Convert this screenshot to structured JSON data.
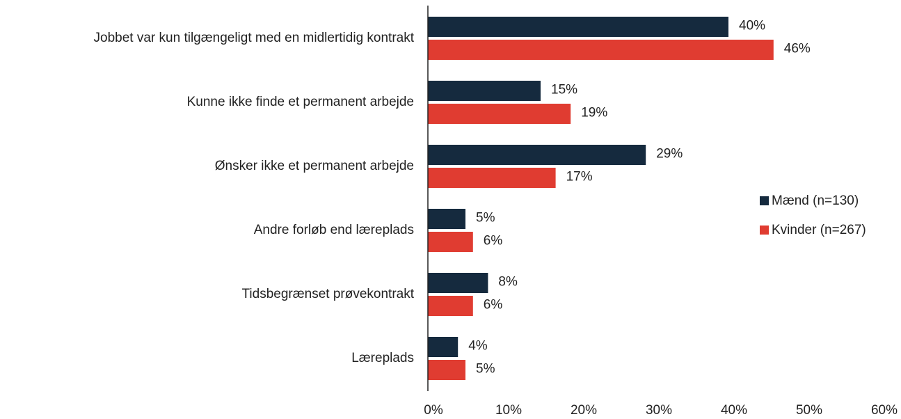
{
  "chart_data": {
    "type": "barh",
    "categories": [
      "Jobbet var kun tilgængeligt med en midlertidig kontrakt",
      "Kunne ikke finde et permanent arbejde",
      "Ønsker ikke et permanent arbejde",
      "Andre forløb end læreplads",
      "Tidsbegrænset prøvekontrakt",
      "Læreplads"
    ],
    "series": [
      {
        "name": "Mænd (n=130)",
        "color": "#152a3e",
        "values": [
          40,
          15,
          29,
          5,
          8,
          4
        ],
        "value_labels": [
          "40%",
          "15%",
          "29%",
          "5%",
          "8%",
          "4%"
        ]
      },
      {
        "name": "Kvinder (n=267)",
        "color": "#e03c31",
        "values": [
          46,
          19,
          17,
          6,
          6,
          5
        ],
        "value_labels": [
          "46%",
          "19%",
          "17%",
          "6%",
          "6%",
          "5%"
        ]
      }
    ],
    "xlim": [
      0,
      60
    ],
    "xticks": [
      {
        "value": 0,
        "label": "0%"
      },
      {
        "value": 10,
        "label": "10%"
      },
      {
        "value": 20,
        "label": "20%"
      },
      {
        "value": 30,
        "label": "30%"
      },
      {
        "value": 40,
        "label": "40%"
      },
      {
        "value": 50,
        "label": "50%"
      },
      {
        "value": 60,
        "label": "60%"
      }
    ],
    "legend": "right"
  }
}
